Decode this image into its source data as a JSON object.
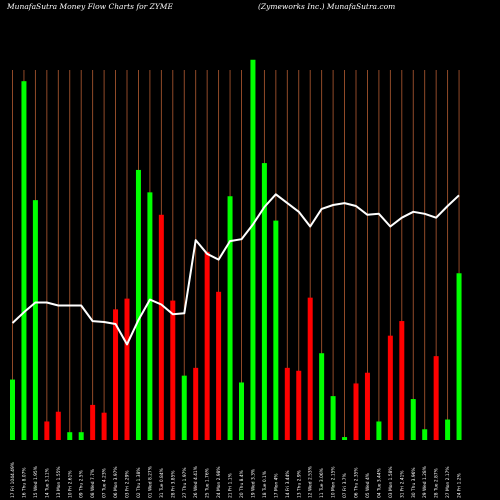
{
  "header": {
    "title_left": "MunafaSutra  Money Flow  Charts for ZYME",
    "title_right": "(Zymeworks Inc.) MunafaSutra.com"
  },
  "colors": {
    "background": "#000000",
    "up_bar": "#00ff00",
    "down_bar": "#ff0000",
    "grid": "#a0522d",
    "line": "#ffffff"
  },
  "chart_data": {
    "type": "bar",
    "title": "MunafaSutra  Money Flow  Charts for ZYME",
    "subtitle": "(Zymeworks Inc.) MunafaSutra.com",
    "categories": [
      "17 Fri 1044.49%",
      "16 Thu 8.07%",
      "15 Wed 1.95%",
      "14 Tue 3.11%",
      "13 Mon 1.55%",
      "10 Fri 2.61%",
      "09 Thu 2.5%",
      "08 Wed 7.7%",
      "07 Tue 4.23%",
      "06 Mon 3.97%",
      "03 Fri 2.29%",
      "02 Thu 1.38%",
      "01 Wed 8.27%",
      "31 Tue 0.84%",
      "28 Fri 3.85%",
      "27 Thu 1.97%",
      "26 Wed 4.41%",
      "25 Tue 1.76%",
      "24 Mon 2.98%",
      "21 Fri 1.1%",
      "20 Thu 8.4%",
      "19 Wed 3.3%",
      "18 Tue 0.1%",
      "17 Mon 4%",
      "14 Fri 3.44%",
      "13 Thu 2.9%",
      "12 Wed 2.53%",
      "11 Tue 3.06%",
      "10 Mon 2.15%",
      "07 Fri 3.7%",
      "06 Thu 2.35%",
      "05 Wed 4%",
      "04 Tue 3.44%",
      "03 Mon 1.58%",
      "31 Fri 2.41%",
      "30 Thu 3.96%",
      "29 Wed 1.28%",
      "28 Tue 2.87%",
      "27 Mon 2.17%",
      "24 Fri 1.2%"
    ],
    "bars": [
      {
        "value": 62,
        "dir": "up"
      },
      {
        "value": 368,
        "dir": "up"
      },
      {
        "value": 246,
        "dir": "up"
      },
      {
        "value": 19,
        "dir": "down"
      },
      {
        "value": 29,
        "dir": "down"
      },
      {
        "value": 8,
        "dir": "up"
      },
      {
        "value": 8,
        "dir": "up"
      },
      {
        "value": 36,
        "dir": "down"
      },
      {
        "value": 28,
        "dir": "down"
      },
      {
        "value": 134,
        "dir": "down"
      },
      {
        "value": 145,
        "dir": "down"
      },
      {
        "value": 277,
        "dir": "up"
      },
      {
        "value": 254,
        "dir": "up"
      },
      {
        "value": 231,
        "dir": "down"
      },
      {
        "value": 143,
        "dir": "down"
      },
      {
        "value": 66,
        "dir": "up"
      },
      {
        "value": 74,
        "dir": "down"
      },
      {
        "value": 193,
        "dir": "down"
      },
      {
        "value": 152,
        "dir": "down"
      },
      {
        "value": 250,
        "dir": "up"
      },
      {
        "value": 59,
        "dir": "up"
      },
      {
        "value": 390,
        "dir": "up"
      },
      {
        "value": 284,
        "dir": "up"
      },
      {
        "value": 225,
        "dir": "up"
      },
      {
        "value": 74,
        "dir": "down"
      },
      {
        "value": 71,
        "dir": "down"
      },
      {
        "value": 146,
        "dir": "down"
      },
      {
        "value": 89,
        "dir": "up"
      },
      {
        "value": 45,
        "dir": "up"
      },
      {
        "value": 3,
        "dir": "up"
      },
      {
        "value": 58,
        "dir": "down"
      },
      {
        "value": 69,
        "dir": "down"
      },
      {
        "value": 19,
        "dir": "up"
      },
      {
        "value": 107,
        "dir": "down"
      },
      {
        "value": 122,
        "dir": "down"
      },
      {
        "value": 42,
        "dir": "up"
      },
      {
        "value": 11,
        "dir": "up"
      },
      {
        "value": 86,
        "dir": "down"
      },
      {
        "value": 21,
        "dir": "up"
      },
      {
        "value": 171,
        "dir": "up"
      }
    ],
    "line": [
      120,
      131,
      141,
      141,
      138,
      138,
      138,
      122,
      121,
      119,
      98,
      123,
      144,
      139,
      129,
      130,
      205,
      191,
      185,
      204,
      206,
      221,
      239,
      252,
      243,
      234,
      219,
      237,
      241,
      243,
      240,
      231,
      232,
      219,
      228,
      234,
      232,
      228,
      240,
      251
    ],
    "ylim": [
      0,
      400
    ],
    "grid": true,
    "legend": "none"
  }
}
